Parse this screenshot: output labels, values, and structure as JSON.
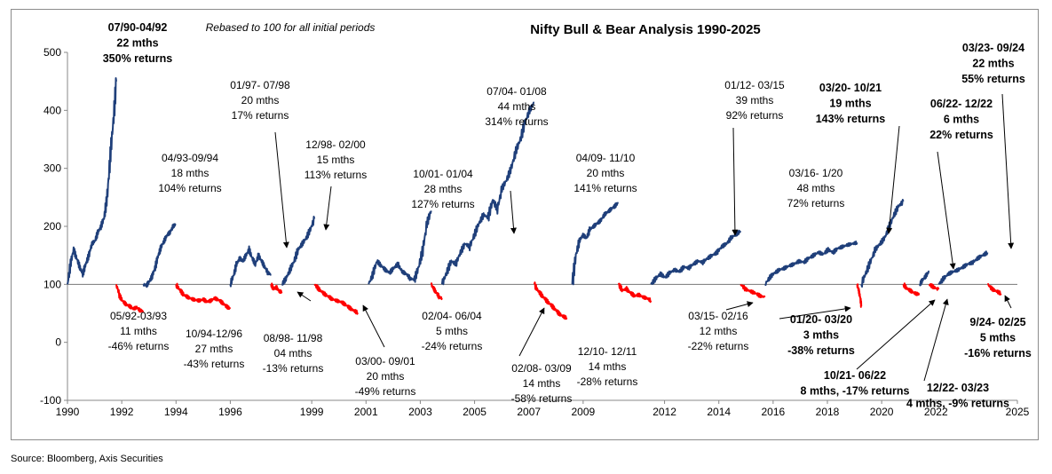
{
  "chart_data": {
    "type": "line",
    "title": "Nifty Bull & Bear Analysis 1990-2025",
    "subtitle": "Rebased to 100 for all initial periods",
    "ylim": [
      -100,
      500
    ],
    "y_ticks": [
      "-100",
      "0",
      "100",
      "200",
      "300",
      "400",
      "500"
    ],
    "x_ticks": [
      "1990",
      "1992",
      "1994",
      "1996",
      "1999",
      "2001",
      "2003",
      "2005",
      "2007",
      "2009",
      "2012",
      "2014",
      "2016",
      "2018",
      "2020",
      "2022",
      "2025"
    ],
    "baseline": 100,
    "colors": {
      "bull": "#1f3f7a",
      "bear": "#ff0000"
    },
    "series": [
      {
        "phase": "bull",
        "x0": 1990.0,
        "x1": 1991.8,
        "y": [
          100,
          135,
          160,
          145,
          130,
          118,
          135,
          150,
          170,
          175,
          190,
          200,
          215,
          250,
          320,
          380,
          450
        ]
      },
      {
        "phase": "bear",
        "x0": 1991.8,
        "x1": 1992.8,
        "y": [
          100,
          80,
          70,
          65,
          62,
          58,
          60,
          55,
          54
        ]
      },
      {
        "phase": "bull",
        "x0": 1992.8,
        "x1": 1994.0,
        "y": [
          100,
          98,
          105,
          115,
          130,
          150,
          165,
          175,
          185,
          190,
          200,
          204
        ]
      },
      {
        "phase": "bear",
        "x0": 1994.0,
        "x1": 1996.0,
        "y": [
          100,
          90,
          82,
          78,
          75,
          73,
          72,
          74,
          70,
          72,
          76,
          73,
          68,
          62,
          58
        ]
      },
      {
        "phase": "bull",
        "x0": 1996.0,
        "x1": 1997.5,
        "y": [
          100,
          115,
          135,
          145,
          140,
          150,
          160,
          145,
          135,
          150,
          140,
          130,
          120,
          117
        ]
      },
      {
        "phase": "bear",
        "x0": 1997.5,
        "x1": 1997.9,
        "y": [
          100,
          92,
          95,
          88,
          87
        ]
      },
      {
        "phase": "bull",
        "x0": 1997.9,
        "x1": 1999.1,
        "y": [
          100,
          110,
          125,
          140,
          160,
          170,
          180,
          195,
          213
        ]
      },
      {
        "phase": "bear",
        "x0": 1999.1,
        "x1": 2000.7,
        "y": [
          100,
          92,
          85,
          80,
          75,
          72,
          70,
          66,
          60,
          55,
          51
        ]
      },
      {
        "phase": "bull",
        "x0": 2001.1,
        "x1": 2003.4,
        "y": [
          100,
          118,
          140,
          132,
          125,
          120,
          128,
          135,
          122,
          118,
          110,
          108,
          130,
          160,
          205,
          227
        ]
      },
      {
        "phase": "bear",
        "x0": 2003.4,
        "x1": 2003.8,
        "y": [
          100,
          92,
          85,
          78,
          76
        ]
      },
      {
        "phase": "bull",
        "x0": 2003.8,
        "x1": 2007.2,
        "y": [
          100,
          120,
          140,
          135,
          155,
          170,
          165,
          185,
          205,
          220,
          215,
          245,
          230,
          265,
          280,
          300,
          330,
          350,
          380,
          400,
          414
        ]
      },
      {
        "phase": "bear",
        "x0": 2007.2,
        "x1": 2008.4,
        "y": [
          100,
          88,
          80,
          72,
          65,
          58,
          50,
          45,
          42
        ]
      },
      {
        "phase": "bull",
        "x0": 2008.6,
        "x1": 2010.3,
        "y": [
          100,
          150,
          175,
          185,
          180,
          195,
          200,
          205,
          210,
          220,
          225,
          230,
          235,
          241
        ]
      },
      {
        "phase": "bear",
        "x0": 2010.3,
        "x1": 2011.5,
        "y": [
          100,
          90,
          92,
          85,
          80,
          82,
          78,
          76,
          72
        ]
      },
      {
        "phase": "bull",
        "x0": 2011.5,
        "x1": 2014.8,
        "y": [
          100,
          110,
          118,
          112,
          120,
          125,
          122,
          130,
          128,
          135,
          140,
          138,
          145,
          150,
          155,
          165,
          170,
          180,
          186,
          192
        ]
      },
      {
        "phase": "bear",
        "x0": 2014.8,
        "x1": 2015.7,
        "y": [
          100,
          92,
          88,
          85,
          80,
          78
        ]
      },
      {
        "phase": "bull",
        "x0": 2015.7,
        "x1": 2019.1,
        "y": [
          100,
          112,
          120,
          125,
          128,
          132,
          135,
          140,
          138,
          145,
          150,
          155,
          152,
          160,
          155,
          162,
          165,
          168,
          170,
          172
        ]
      },
      {
        "phase": "bear",
        "x0": 2019.1,
        "x1": 2019.25,
        "y": [
          100,
          90,
          80,
          62
        ]
      },
      {
        "phase": "bull",
        "x0": 2019.25,
        "x1": 2020.8,
        "y": [
          100,
          120,
          140,
          160,
          170,
          180,
          200,
          220,
          235,
          243
        ]
      },
      {
        "phase": "bear",
        "x0": 2020.8,
        "x1": 2021.4,
        "y": [
          100,
          92,
          88,
          84,
          83
        ]
      },
      {
        "phase": "bull",
        "x0": 2021.4,
        "x1": 2021.75,
        "y": [
          100,
          108,
          115,
          122
        ]
      },
      {
        "phase": "bear",
        "x0": 2021.75,
        "x1": 2022.1,
        "y": [
          100,
          95,
          91
        ]
      },
      {
        "phase": "bull",
        "x0": 2022.1,
        "x1": 2023.9,
        "y": [
          100,
          110,
          118,
          122,
          125,
          130,
          135,
          138,
          145,
          150,
          155
        ]
      },
      {
        "phase": "bear",
        "x0": 2023.9,
        "x1": 2024.4,
        "y": [
          100,
          92,
          88,
          84
        ]
      }
    ],
    "annotations": [
      {
        "lines": [
          "07/90-04/92",
          "22 mths",
          "350% returns"
        ],
        "bold": true
      },
      {
        "lines": [
          "05/92-03/93",
          "11 mths",
          "-46% returns"
        ],
        "bold": false
      },
      {
        "lines": [
          "04/93-09/94",
          "18 mths",
          "104% returns"
        ],
        "bold": false
      },
      {
        "lines": [
          "10/94-12/96",
          "27 mths",
          "-43% returns"
        ],
        "bold": false
      },
      {
        "lines": [
          "01/97- 07/98",
          "20 mths",
          "17% returns"
        ],
        "bold": false
      },
      {
        "lines": [
          "08/98- 11/98",
          "04 mths",
          "-13% returns"
        ],
        "bold": false
      },
      {
        "lines": [
          "12/98- 02/00",
          "15 mths",
          "113% returns"
        ],
        "bold": false
      },
      {
        "lines": [
          "03/00- 09/01",
          "20 mths",
          "-49% returns"
        ],
        "bold": false
      },
      {
        "lines": [
          "10/01- 01/04",
          "28 mths",
          "127% returns"
        ],
        "bold": false
      },
      {
        "lines": [
          "02/04- 06/04",
          "5 mths",
          "-24% returns"
        ],
        "bold": false
      },
      {
        "lines": [
          "07/04- 01/08",
          "44 mths",
          "314% returns"
        ],
        "bold": false
      },
      {
        "lines": [
          "02/08- 03/09",
          "14 mths",
          "-58% returns"
        ],
        "bold": false
      },
      {
        "lines": [
          "04/09- 11/10",
          "20 mths",
          "141% returns"
        ],
        "bold": false
      },
      {
        "lines": [
          "12/10- 12/11",
          "14 mths",
          "-28% returns"
        ],
        "bold": false
      },
      {
        "lines": [
          "01/12- 03/15",
          "39 mths",
          "92% returns"
        ],
        "bold": false
      },
      {
        "lines": [
          "03/15- 02/16",
          "12 mths",
          "-22% returns"
        ],
        "bold": false
      },
      {
        "lines": [
          "03/16- 1/20",
          "48 mths",
          "72% returns"
        ],
        "bold": false
      },
      {
        "lines": [
          "01/20- 03/20",
          "3 mths",
          "-38% returns"
        ],
        "bold": true
      },
      {
        "lines": [
          "03/20- 10/21",
          "19 mths",
          "143% returns"
        ],
        "bold": true
      },
      {
        "lines": [
          "10/21- 06/22",
          "8 mths, -17% returns"
        ],
        "bold": true
      },
      {
        "lines": [
          "06/22- 12/22",
          "6 mths",
          "22% returns"
        ],
        "bold": true
      },
      {
        "lines": [
          "12/22- 03/23",
          "4 mths, -9% returns"
        ],
        "bold": true
      },
      {
        "lines": [
          "03/23- 09/24",
          "22 mths",
          "55% returns"
        ],
        "bold": true
      },
      {
        "lines": [
          "9/24- 02/25",
          "5 mths",
          "-16% returns"
        ],
        "bold": true
      }
    ]
  },
  "footer": {
    "source": "Source: Bloomberg, Axis Securities"
  }
}
